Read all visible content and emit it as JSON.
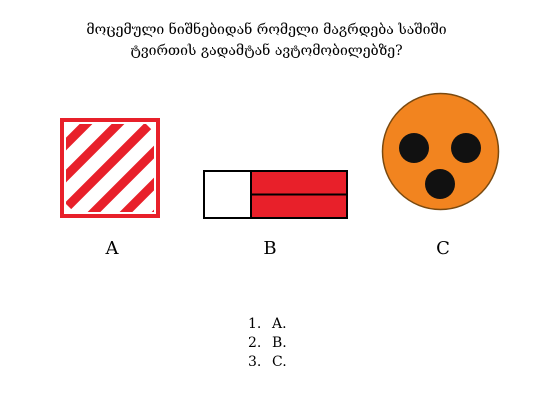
{
  "question": {
    "line1": "მოცემული ნიშნებიდან რომელი მაგრდება საშიში",
    "line2": "ტვირთის გადამტან ავტომობილებზე?"
  },
  "options": [
    {
      "letter": "A",
      "icon": "striped-square-sign",
      "colors": {
        "primary": "#e8202a",
        "secondary": "#ffffff"
      }
    },
    {
      "letter": "B",
      "icon": "red-white-rectangle-sign",
      "colors": {
        "primary": "#e8202a",
        "secondary": "#ffffff",
        "outline": "#000000"
      }
    },
    {
      "letter": "C",
      "icon": "orange-disc-three-dots-sign",
      "colors": {
        "primary": "#f2841f",
        "dots": "#111111"
      }
    }
  ],
  "answers": [
    {
      "number": "1.",
      "text": "A."
    },
    {
      "number": "2.",
      "text": "B."
    },
    {
      "number": "3.",
      "text": "C."
    }
  ]
}
